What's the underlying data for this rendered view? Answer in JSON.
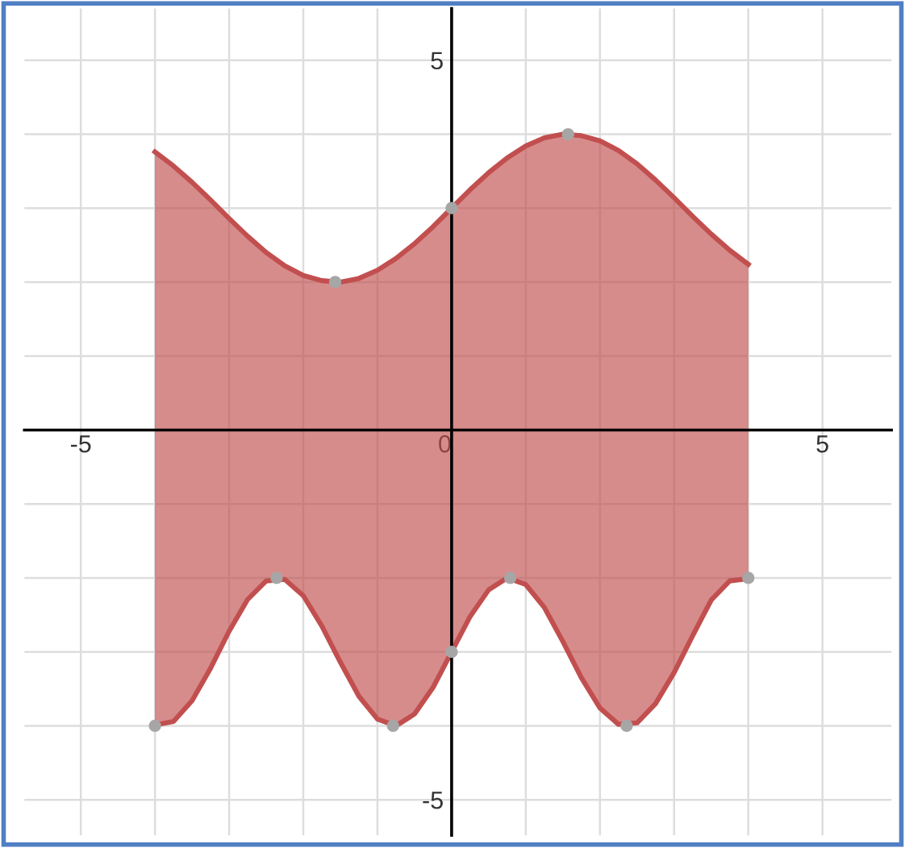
{
  "chart_data": {
    "type": "line",
    "x": [
      -4,
      -3.75,
      -3.5,
      -3.25,
      -3,
      -2.75,
      -2.5,
      -2.25,
      -2,
      -1.75,
      -1.5,
      -1.25,
      -1,
      -0.75,
      -0.5,
      -0.25,
      0,
      0.25,
      0.5,
      0.75,
      1,
      1.25,
      1.5,
      1.75,
      2,
      2.25,
      2.5,
      2.75,
      3,
      3.25,
      3.5,
      3.75,
      4
    ],
    "series": [
      {
        "color": "#c24f4f",
        "upper": [
          3.76,
          3.57,
          3.35,
          3.11,
          2.86,
          2.62,
          2.4,
          2.22,
          2.09,
          2.02,
          2.0,
          2.05,
          2.16,
          2.32,
          2.52,
          2.75,
          3.0,
          3.25,
          3.48,
          3.68,
          3.84,
          3.95,
          4.0,
          3.98,
          3.91,
          3.78,
          3.6,
          3.38,
          3.14,
          2.89,
          2.65,
          2.43,
          2.24
        ],
        "values": [
          3.76,
          3.57,
          3.35,
          3.11,
          2.86,
          2.62,
          2.4,
          2.22,
          2.09,
          2.02,
          2.0,
          2.05,
          2.16,
          2.32,
          2.52,
          2.75,
          3.0,
          3.25,
          3.48,
          3.68,
          3.84,
          3.95,
          4.0,
          3.98,
          3.91,
          3.78,
          3.6,
          3.38,
          3.14,
          2.89,
          2.65,
          2.43,
          2.24
        ],
        "lower": [
          -3.99,
          -3.94,
          -3.66,
          -3.22,
          -2.72,
          -2.29,
          -2.04,
          -2.02,
          -2.24,
          -2.65,
          -3.14,
          -3.6,
          -3.91,
          -4.0,
          -3.84,
          -3.48,
          -3.0,
          -2.52,
          -2.16,
          -2.0,
          -2.09,
          -2.4,
          -2.86,
          -3.35,
          -3.76,
          -3.98,
          -3.96,
          -3.7,
          -3.28,
          -2.78,
          -2.3,
          -2.04,
          -2.01
        ]
      },
      {
        "color": "#c24f4f",
        "values": [
          -3.99,
          -3.94,
          -3.66,
          -3.22,
          -2.72,
          -2.29,
          -2.04,
          -2.02,
          -2.24,
          -2.65,
          -3.14,
          -3.6,
          -3.91,
          -4.0,
          -3.84,
          -3.48,
          -3.0,
          -2.52,
          -2.16,
          -2.0,
          -2.09,
          -2.4,
          -2.86,
          -3.35,
          -3.76,
          -3.98,
          -3.96,
          -3.7,
          -3.28,
          -2.78,
          -2.3,
          -2.04,
          -2.01
        ]
      },
      {
        "type": "scatter",
        "marker": "circle",
        "color": "#a6a6a6",
        "x": [
          -1.57,
          0,
          1.57,
          -4,
          -2.36,
          -0.79,
          0,
          0.79,
          2.36,
          4
        ],
        "values": [
          2,
          3,
          4,
          -4,
          -2,
          -4,
          -3,
          -2,
          -4,
          -2
        ]
      }
    ],
    "xlim": [
      -5.76,
      5.93
    ],
    "ylim": [
      -5.48,
      5.7
    ],
    "xticks": [
      {
        "value": -5,
        "label": "-5"
      },
      {
        "value": -4,
        "label": null
      },
      {
        "value": -3,
        "label": null
      },
      {
        "value": -2,
        "label": null
      },
      {
        "value": -1,
        "label": null
      },
      {
        "value": 0,
        "label": "0"
      },
      {
        "value": 1,
        "label": null
      },
      {
        "value": 2,
        "label": null
      },
      {
        "value": 3,
        "label": null
      },
      {
        "value": 4,
        "label": null
      },
      {
        "value": 5,
        "label": "5"
      }
    ],
    "yticks": [
      {
        "value": -5,
        "label": "-5"
      },
      {
        "value": -4,
        "label": null
      },
      {
        "value": -3,
        "label": null
      },
      {
        "value": -2,
        "label": null
      },
      {
        "value": -1,
        "label": null
      },
      {
        "value": 1,
        "label": null
      },
      {
        "value": 2,
        "label": null
      },
      {
        "value": 3,
        "label": null
      },
      {
        "value": 4,
        "label": null
      },
      {
        "value": 5,
        "label": "5"
      }
    ],
    "grid": true
  }
}
